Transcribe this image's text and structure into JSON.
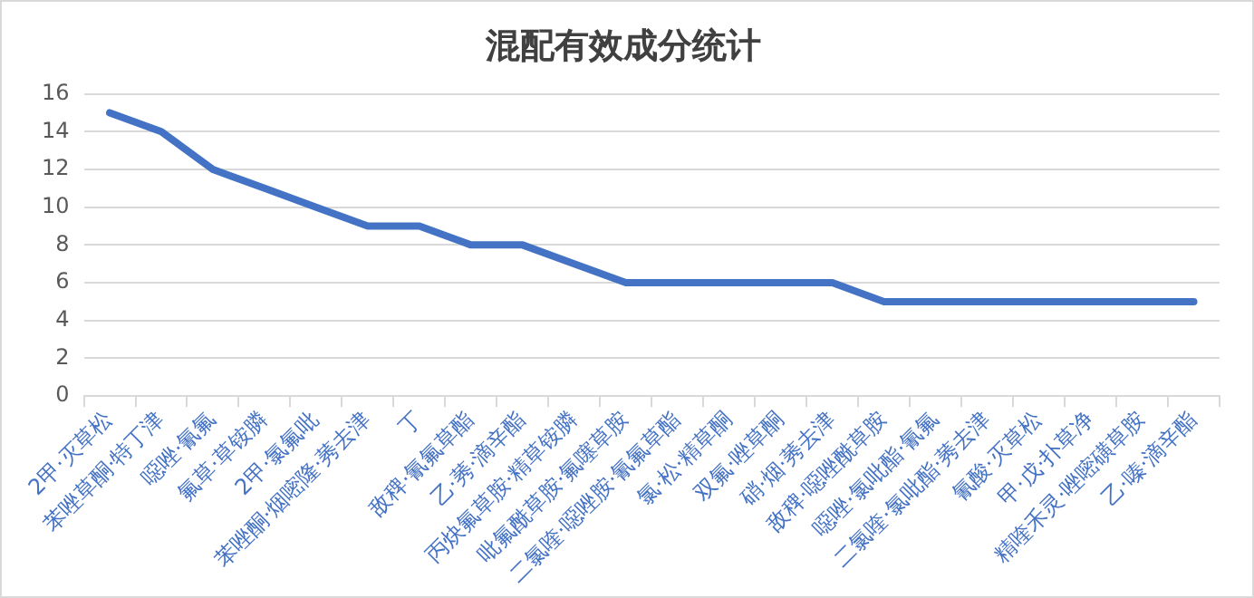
{
  "chart_data": {
    "type": "line",
    "title": "混配有效成分统计",
    "categories": [
      "2甲·灭草松",
      "苯唑草酮·特丁津",
      "噁唑·氰氟",
      "氟草·草铵膦",
      "2甲·氯氟吡",
      "苯唑酮·烟嘧隆·莠去津",
      "丁",
      "敌稗·氰氟草酯",
      "乙·莠·滴辛酯",
      "丙炔氟草胺·精草铵膦",
      "吡氟酰草胺·氟噻草胺",
      "二氯喹·噁唑胺·氰氟草酯",
      "氯·松·精草酮",
      "双氟·唑草酮",
      "硝·烟·莠去津",
      "敌稗·噁唑酰草胺",
      "噁唑·氯吡酯·氰氟",
      "二氯喹·氯吡酯·莠去津",
      "氰酸·灭草松",
      "甲·戊·扑草净",
      "精喹禾灵·唑嘧磺草胺",
      "乙·嗪·滴辛酯"
    ],
    "values": [
      15,
      14,
      12,
      11,
      10,
      9,
      9,
      8,
      8,
      7,
      6,
      6,
      6,
      6,
      6,
      5,
      5,
      5,
      5,
      5,
      5,
      5
    ],
    "color": "#4472c4",
    "ylim": [
      0,
      16
    ],
    "yticks": [
      0,
      2,
      4,
      6,
      8,
      10,
      12,
      14,
      16
    ],
    "grid": "y",
    "legend": false,
    "marker": "none",
    "line_style": "solid"
  }
}
